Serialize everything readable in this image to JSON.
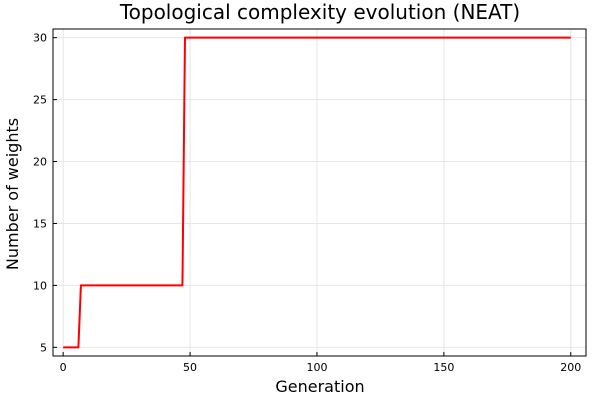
{
  "chart_data": {
    "type": "line",
    "title": "Topological complexity evolution (NEAT)",
    "xlabel": "Generation",
    "ylabel": "Number of weights",
    "xlim": [
      -4,
      206
    ],
    "ylim": [
      4.3,
      30.7
    ],
    "xticks": [
      0,
      50,
      100,
      150,
      200
    ],
    "yticks": [
      5,
      10,
      15,
      20,
      25,
      30
    ],
    "grid": true,
    "legend": "none",
    "series": [
      {
        "color": "#ff0000",
        "x": [
          0,
          6,
          7,
          47,
          48,
          200
        ],
        "y": [
          5,
          5,
          10,
          10,
          30,
          30
        ]
      }
    ]
  }
}
